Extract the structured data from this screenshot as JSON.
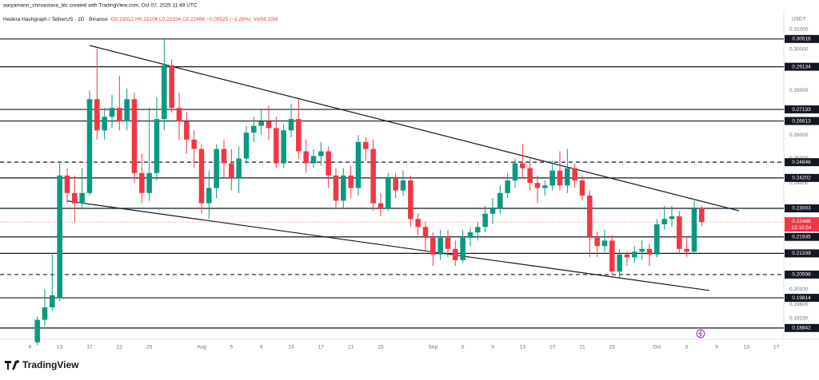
{
  "header": {
    "credit": "aaryamann_shrivastava_blc created with TradingView.com, Oct 07, 2025 11:49 UTC",
    "symbol": "Hedera Hashgraph / TetherUS · 1D · Binance",
    "ohlc": "O0.23012 H0.23106 L0.22334 C0.22486 −0.00525 (−2.28%)",
    "volume": "Vol58.22M"
  },
  "footer": {
    "brand": "TradingView"
  },
  "chart_data": {
    "type": "candlestick",
    "currency": "USDT",
    "log_scale": true,
    "up_color": "#089981",
    "down_color": "#f23645",
    "x": [
      "07-10",
      "07-11",
      "07-12",
      "07-13",
      "07-14",
      "07-15",
      "07-16",
      "07-17",
      "07-18",
      "07-19",
      "07-20",
      "07-21",
      "07-22",
      "07-23",
      "07-24",
      "07-25",
      "07-26",
      "07-27",
      "07-28",
      "07-29",
      "07-30",
      "07-31",
      "08-01",
      "08-02",
      "08-03",
      "08-04",
      "08-05",
      "08-06",
      "08-07",
      "08-08",
      "08-09",
      "08-10",
      "08-11",
      "08-12",
      "08-13",
      "08-14",
      "08-15",
      "08-16",
      "08-17",
      "08-18",
      "08-19",
      "08-20",
      "08-21",
      "08-22",
      "08-23",
      "08-24",
      "08-25",
      "08-26",
      "08-27",
      "08-28",
      "08-29",
      "08-30",
      "08-31",
      "09-01",
      "09-02",
      "09-03",
      "09-04",
      "09-05",
      "09-06",
      "09-07",
      "09-08",
      "09-09",
      "09-10",
      "09-11",
      "09-12",
      "09-13",
      "09-14",
      "09-15",
      "09-16",
      "09-17",
      "09-18",
      "09-19",
      "09-20",
      "09-21",
      "09-22",
      "09-23",
      "09-24",
      "09-25",
      "09-26",
      "09-27",
      "09-28",
      "09-29",
      "09-30",
      "10-01",
      "10-02",
      "10-03",
      "10-04",
      "10-05",
      "10-06",
      "10-07"
    ],
    "open": [
      0.184,
      0.191,
      0.195,
      0.198,
      0.243,
      0.236,
      0.232,
      0.236,
      0.276,
      0.262,
      0.268,
      0.272,
      0.266,
      0.276,
      0.244,
      0.236,
      0.244,
      0.267,
      0.292,
      0.272,
      0.266,
      0.258,
      0.254,
      0.232,
      0.238,
      0.254,
      0.248,
      0.242,
      0.25,
      0.261,
      0.264,
      0.266,
      0.263,
      0.248,
      0.262,
      0.267,
      0.253,
      0.248,
      0.251,
      0.253,
      0.243,
      0.233,
      0.243,
      0.238,
      0.257,
      0.254,
      0.232,
      0.23,
      0.242,
      0.237,
      0.241,
      0.226,
      0.223,
      0.219,
      0.213,
      0.219,
      0.215,
      0.211,
      0.219,
      0.221,
      0.223,
      0.228,
      0.23,
      0.236,
      0.241,
      0.248,
      0.246,
      0.24,
      0.238,
      0.239,
      0.245,
      0.239,
      0.246,
      0.241,
      0.235,
      0.219,
      0.216,
      0.218,
      0.207,
      0.213,
      0.212,
      0.214,
      0.215,
      0.213,
      0.224,
      0.226,
      0.227,
      0.215,
      0.214,
      0.23012
    ],
    "high": [
      0.192,
      0.201,
      0.213,
      0.248,
      0.246,
      0.243,
      0.246,
      0.28,
      0.3,
      0.272,
      0.278,
      0.287,
      0.281,
      0.279,
      0.252,
      0.272,
      0.277,
      0.305,
      0.295,
      0.279,
      0.27,
      0.262,
      0.256,
      0.245,
      0.256,
      0.258,
      0.254,
      0.255,
      0.264,
      0.268,
      0.271,
      0.273,
      0.268,
      0.265,
      0.274,
      0.276,
      0.258,
      0.254,
      0.257,
      0.255,
      0.246,
      0.246,
      0.247,
      0.26,
      0.259,
      0.258,
      0.236,
      0.244,
      0.244,
      0.245,
      0.243,
      0.228,
      0.225,
      0.221,
      0.222,
      0.222,
      0.218,
      0.222,
      0.223,
      0.225,
      0.231,
      0.234,
      0.239,
      0.244,
      0.25,
      0.256,
      0.25,
      0.243,
      0.241,
      0.249,
      0.253,
      0.254,
      0.248,
      0.243,
      0.237,
      0.221,
      0.222,
      0.22,
      0.215,
      0.214,
      0.216,
      0.218,
      0.217,
      0.226,
      0.231,
      0.231,
      0.229,
      0.219,
      0.233,
      0.23106
    ],
    "low": [
      0.183,
      0.189,
      0.194,
      0.197,
      0.232,
      0.225,
      0.23,
      0.235,
      0.258,
      0.258,
      0.263,
      0.262,
      0.262,
      0.24,
      0.232,
      0.233,
      0.241,
      0.262,
      0.27,
      0.258,
      0.252,
      0.246,
      0.228,
      0.226,
      0.234,
      0.242,
      0.237,
      0.236,
      0.248,
      0.257,
      0.26,
      0.258,
      0.246,
      0.246,
      0.259,
      0.25,
      0.244,
      0.246,
      0.247,
      0.238,
      0.23,
      0.23,
      0.234,
      0.235,
      0.249,
      0.229,
      0.227,
      0.229,
      0.234,
      0.235,
      0.223,
      0.22,
      0.214,
      0.209,
      0.211,
      0.212,
      0.209,
      0.21,
      0.216,
      0.218,
      0.221,
      0.224,
      0.228,
      0.234,
      0.238,
      0.242,
      0.237,
      0.232,
      0.235,
      0.237,
      0.237,
      0.236,
      0.238,
      0.233,
      0.212,
      0.212,
      0.214,
      0.206,
      0.205,
      0.209,
      0.21,
      0.211,
      0.209,
      0.212,
      0.222,
      0.223,
      0.213,
      0.212,
      0.213,
      0.22334
    ],
    "close": [
      0.191,
      0.195,
      0.199,
      0.243,
      0.236,
      0.232,
      0.236,
      0.276,
      0.262,
      0.268,
      0.272,
      0.266,
      0.276,
      0.244,
      0.236,
      0.244,
      0.267,
      0.292,
      0.272,
      0.266,
      0.258,
      0.254,
      0.232,
      0.238,
      0.254,
      0.248,
      0.242,
      0.25,
      0.261,
      0.264,
      0.266,
      0.263,
      0.248,
      0.262,
      0.267,
      0.253,
      0.248,
      0.251,
      0.253,
      0.243,
      0.233,
      0.243,
      0.238,
      0.257,
      0.254,
      0.232,
      0.23,
      0.242,
      0.237,
      0.241,
      0.226,
      0.223,
      0.219,
      0.213,
      0.219,
      0.215,
      0.211,
      0.219,
      0.221,
      0.223,
      0.228,
      0.23,
      0.236,
      0.241,
      0.248,
      0.246,
      0.24,
      0.238,
      0.239,
      0.245,
      0.239,
      0.246,
      0.241,
      0.235,
      0.219,
      0.216,
      0.218,
      0.207,
      0.213,
      0.212,
      0.214,
      0.215,
      0.213,
      0.224,
      0.226,
      0.227,
      0.215,
      0.214,
      0.23,
      0.22486
    ],
    "xlim": [
      "07-05",
      "10-18"
    ],
    "xticks": [
      {
        "value": "07-09",
        "label": "9"
      },
      {
        "value": "07-13",
        "label": "13"
      },
      {
        "value": "07-17",
        "label": "17"
      },
      {
        "value": "07-21",
        "label": "21"
      },
      {
        "value": "07-25",
        "label": "25"
      },
      {
        "value": "08-01",
        "label": "Aug"
      },
      {
        "value": "08-05",
        "label": "5"
      },
      {
        "value": "08-09",
        "label": "9"
      },
      {
        "value": "08-13",
        "label": "13"
      },
      {
        "value": "08-17",
        "label": "17"
      },
      {
        "value": "08-21",
        "label": "21"
      },
      {
        "value": "08-25",
        "label": "25"
      },
      {
        "value": "09-01",
        "label": "Sep"
      },
      {
        "value": "09-05",
        "label": "5"
      },
      {
        "value": "09-09",
        "label": "9"
      },
      {
        "value": "09-13",
        "label": "13"
      },
      {
        "value": "09-17",
        "label": "17"
      },
      {
        "value": "09-21",
        "label": "21"
      },
      {
        "value": "09-25",
        "label": "25"
      },
      {
        "value": "10-01",
        "label": "Oct"
      },
      {
        "value": "10-05",
        "label": "5"
      },
      {
        "value": "10-09",
        "label": "9"
      },
      {
        "value": "10-13",
        "label": "13"
      },
      {
        "value": "10-17",
        "label": "17"
      }
    ],
    "ylim": [
      0.1849,
      0.3171
    ],
    "yticks": [
      {
        "value": 0.31,
        "label": "0.31000"
      },
      {
        "value": 0.3,
        "label": "0.30000"
      },
      {
        "value": 0.28,
        "label": "0.28000"
      },
      {
        "value": 0.26,
        "label": "0.26000"
      },
      {
        "value": 0.25,
        "label": "0.25000"
      },
      {
        "value": 0.24,
        "label": "0.24000"
      },
      {
        "value": 0.201,
        "label": "0.20100"
      },
      {
        "value": 0.196,
        "label": "0.19600"
      },
      {
        "value": 0.1915,
        "label": "0.19150"
      }
    ],
    "levels": [
      {
        "value": 0.30516,
        "dashed": false
      },
      {
        "value": 0.29134,
        "dashed": false
      },
      {
        "value": 0.27133,
        "dashed": false
      },
      {
        "value": 0.26613,
        "dashed": false
      },
      {
        "value": 0.24846,
        "dashed": true
      },
      {
        "value": 0.24202,
        "dashed": false
      },
      {
        "value": 0.23003,
        "dashed": false
      },
      {
        "value": 0.21935,
        "dashed": false
      },
      {
        "value": 0.21339,
        "dashed": false
      },
      {
        "value": 0.20598,
        "dashed": true
      },
      {
        "value": 0.19814,
        "dashed": false
      },
      {
        "value": 0.18842,
        "dashed": false
      }
    ],
    "last_price": {
      "value": 0.22486,
      "countdown": "12:10:54"
    },
    "trendlines": [
      {
        "start": [
          "07-17",
          0.3019
        ],
        "end": [
          "10-12",
          0.2291
        ]
      },
      {
        "start": [
          "07-14",
          0.2329
        ],
        "end": [
          "10-08",
          0.2006
        ]
      }
    ]
  }
}
